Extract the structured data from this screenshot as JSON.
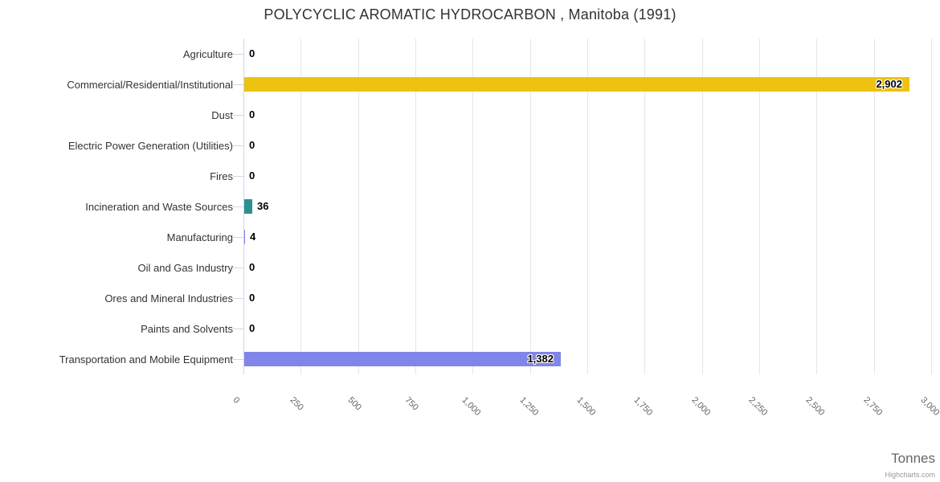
{
  "chart_data": {
    "type": "bar",
    "orientation": "horizontal",
    "title": "POLYCYCLIC AROMATIC HYDROCARBON , Manitoba (1991)",
    "categories": [
      "Agriculture",
      "Commercial/Residential/Institutional",
      "Dust",
      "Electric Power Generation (Utilities)",
      "Fires",
      "Incineration and Waste Sources",
      "Manufacturing",
      "Oil and Gas Industry",
      "Ores and Mineral Industries",
      "Paints and Solvents",
      "Transportation and Mobile Equipment"
    ],
    "values": [
      0,
      2902,
      0,
      0,
      0,
      36,
      4,
      0,
      0,
      0,
      1382
    ],
    "value_labels": [
      "0",
      "2,902",
      "0",
      "0",
      "0",
      "36",
      "4",
      "0",
      "0",
      "0",
      "1,382"
    ],
    "colors": [
      null,
      "#eec211",
      null,
      null,
      null,
      "#2b908f",
      "#8085e9",
      null,
      null,
      null,
      "#8085e9"
    ],
    "xlabel": "Tonnes",
    "xlim": [
      0,
      3000
    ],
    "xticks": [
      0,
      250,
      500,
      750,
      1000,
      1250,
      1500,
      1750,
      2000,
      2250,
      2500,
      2750,
      3000
    ],
    "xtick_labels": [
      "0",
      "250",
      "500",
      "750",
      "1,000",
      "1,250",
      "1,500",
      "1,750",
      "2,000",
      "2,250",
      "2,500",
      "2,750",
      "3,000"
    ],
    "grid": true,
    "legend": false
  },
  "styles": {
    "grid_color": "#e6e6e6",
    "axis_line_color": "#ccd6eb",
    "category_label_color": "#333333",
    "tick_label_color": "#666666",
    "title_color": "#333333",
    "default_bar_color": "#8085e9",
    "background": "#ffffff"
  },
  "credits": {
    "label": "Highcharts.com"
  }
}
